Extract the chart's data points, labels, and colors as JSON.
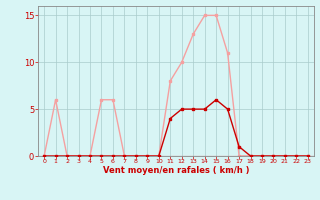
{
  "x": [
    0,
    1,
    2,
    3,
    4,
    5,
    6,
    7,
    8,
    9,
    10,
    11,
    12,
    13,
    14,
    15,
    16,
    17,
    18,
    19,
    20,
    21,
    22,
    23
  ],
  "rafales": [
    0,
    6,
    0,
    0,
    0,
    6,
    6,
    0,
    0,
    0,
    0,
    8,
    10,
    13,
    15,
    15,
    11,
    0,
    0,
    0,
    0,
    0,
    0,
    0
  ],
  "moyen": [
    0,
    0,
    0,
    0,
    0,
    0,
    0,
    0,
    0,
    0,
    0,
    4,
    5,
    5,
    5,
    6,
    5,
    1,
    0,
    0,
    0,
    0,
    0,
    0
  ],
  "color_rafales": "#f5a0a0",
  "color_moyen": "#cc0000",
  "background_color": "#d8f5f5",
  "grid_color": "#aacccc",
  "axis_color": "#888888",
  "text_color": "#cc0000",
  "xlabel": "Vent moyen/en rafales ( km/h )",
  "ylim": [
    0,
    16
  ],
  "xlim": [
    -0.5,
    23.5
  ],
  "yticks": [
    0,
    5,
    10,
    15
  ],
  "marker": "s",
  "marker_size": 2,
  "linewidth": 1.0
}
